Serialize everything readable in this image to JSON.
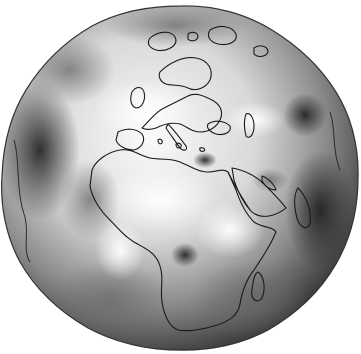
{
  "figure": {
    "subject": "globe-africa-europe",
    "colors": {
      "background": "#ffffff",
      "surface_light": "#f2f2f2",
      "surface_mid": "#9a9a9a",
      "surface_dark": "#2b2b2b",
      "coastline": "#1a1a1a",
      "outline": "#333333"
    }
  }
}
